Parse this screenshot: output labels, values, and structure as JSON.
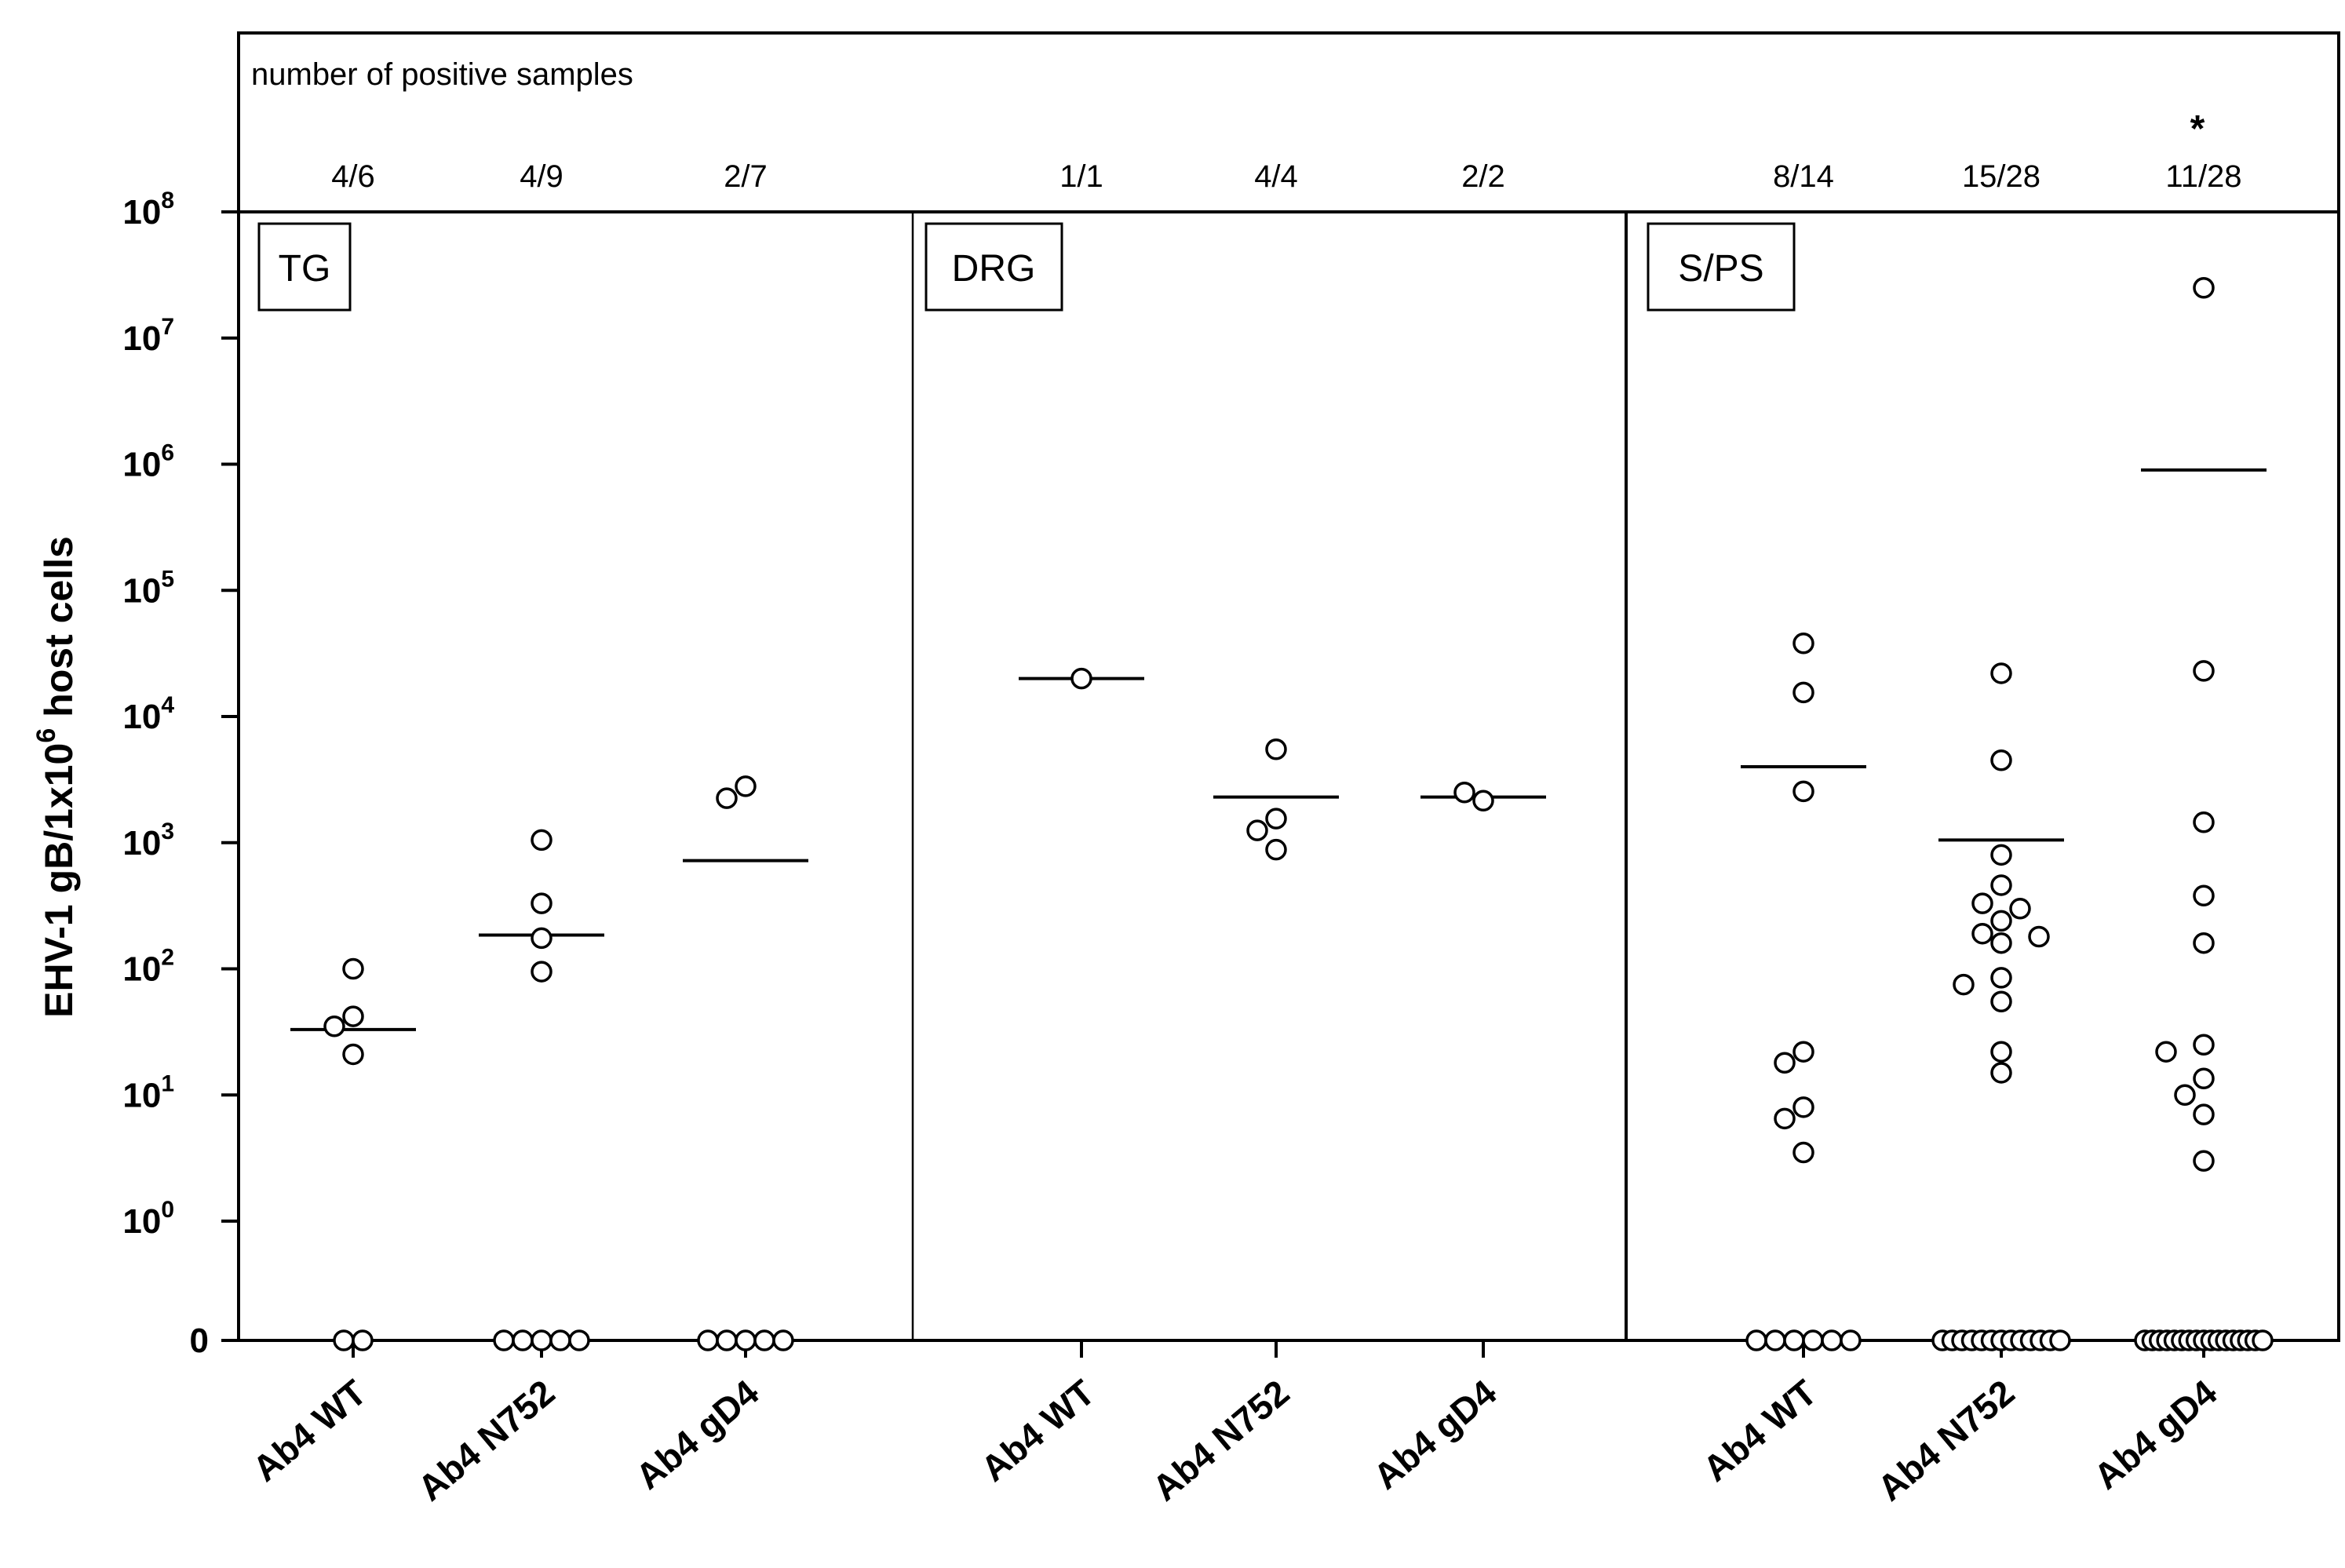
{
  "chart_data": {
    "type": "scatter",
    "header_label": "number of positive samples",
    "y_title_prefix": "EHV-1 gB/1x10",
    "y_title_sup": "6",
    "y_title_suffix": " host cells",
    "y_scale": "log10-with-zero",
    "y_ticks": [
      {
        "base": "10",
        "exp": "8",
        "value": 100000000
      },
      {
        "base": "10",
        "exp": "7",
        "value": 10000000
      },
      {
        "base": "10",
        "exp": "6",
        "value": 1000000
      },
      {
        "base": "10",
        "exp": "5",
        "value": 100000
      },
      {
        "base": "10",
        "exp": "4",
        "value": 10000
      },
      {
        "base": "10",
        "exp": "3",
        "value": 1000
      },
      {
        "base": "10",
        "exp": "2",
        "value": 100
      },
      {
        "base": "10",
        "exp": "1",
        "value": 10
      },
      {
        "base": "10",
        "exp": "0",
        "value": 1
      },
      {
        "base": "0",
        "exp": "",
        "value": 0
      }
    ],
    "significance_marker": "*",
    "panels": [
      {
        "label": "TG",
        "groups": [
          {
            "category": "Ab4 WT",
            "positive": "4/6",
            "mean": 33,
            "values": [
              100,
              42,
              35,
              21
            ],
            "zeros": 2
          },
          {
            "category": "Ab4 N752",
            "positive": "4/9",
            "mean": 185,
            "values": [
              1050,
              330,
              175,
              95
            ],
            "zeros": 5
          },
          {
            "category": "Ab4 gD4",
            "positive": "2/7",
            "mean": 720,
            "values": [
              2800,
              2250
            ],
            "zeros": 5
          }
        ]
      },
      {
        "label": "DRG",
        "groups": [
          {
            "category": "Ab4 WT",
            "positive": "1/1",
            "mean": 20000,
            "values": [
              20000
            ],
            "zeros": 0
          },
          {
            "category": "Ab4 N752",
            "positive": "4/4",
            "mean": 2300,
            "values": [
              5500,
              1550,
              1250,
              880
            ],
            "zeros": 0
          },
          {
            "category": "Ab4 gD4",
            "positive": "2/2",
            "mean": 2300,
            "values": [
              2150,
              2500
            ],
            "zeros": 0
          }
        ]
      },
      {
        "label": "S/PS",
        "groups": [
          {
            "category": "Ab4 WT",
            "positive": "8/14",
            "mean": 4000,
            "values": [
              38000,
              15500,
              2550,
              22,
              18,
              8,
              6.5,
              3.5
            ],
            "zeros": 6
          },
          {
            "category": "Ab4 N752",
            "positive": "15/28",
            "mean": 1050,
            "values": [
              22000,
              4500,
              800,
              460,
              330,
              240,
              190,
              160,
              85,
              75,
              55,
              22,
              15,
              300,
              180
            ],
            "zeros": 13
          },
          {
            "category": "Ab4 gD4",
            "positive": "11/28",
            "mean": 900000,
            "significant": true,
            "values": [
              25000000,
              23000,
              1450,
              380,
              160,
              25,
              22,
              13.5,
              10,
              7,
              3
            ],
            "zeros": 17
          }
        ]
      }
    ]
  }
}
